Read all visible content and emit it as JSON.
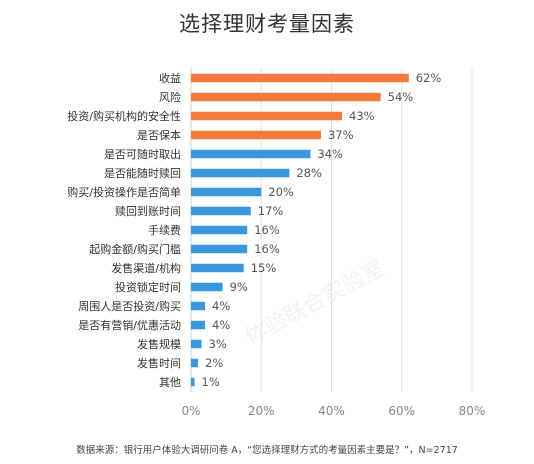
{
  "chart_data": {
    "type": "bar",
    "orientation": "horizontal",
    "title": "选择理财考量因素",
    "categories": [
      "收益",
      "风险",
      "投资/购买机构的安全性",
      "是否保本",
      "是否可随时取出",
      "是否能随时赎回",
      "购买/投资操作是否简单",
      "赎回到账时间",
      "手续费",
      "起购金额/购买门槛",
      "发售渠道/机构",
      "投资锁定时间",
      "周围人是否投资/购买",
      "是否有营销/优惠活动",
      "发售规模",
      "发售时间",
      "其他"
    ],
    "values": [
      62,
      54,
      43,
      37,
      34,
      28,
      20,
      17,
      16,
      16,
      15,
      9,
      4,
      4,
      3,
      2,
      1
    ],
    "data_labels": [
      "62%",
      "54%",
      "43%",
      "37%",
      "34%",
      "28%",
      "20%",
      "17%",
      "16%",
      "16%",
      "15%",
      "9%",
      "4%",
      "4%",
      "3%",
      "2%",
      "1%"
    ],
    "colors": [
      "#F47A3C",
      "#F47A3C",
      "#F47A3C",
      "#F47A3C",
      "#3A97D9",
      "#3A97D9",
      "#3A97D9",
      "#3A97D9",
      "#3A97D9",
      "#3A97D9",
      "#3A97D9",
      "#3A97D9",
      "#3A97D9",
      "#3A97D9",
      "#3A97D9",
      "#3A97D9",
      "#3A97D9"
    ],
    "xlim": [
      0,
      80
    ],
    "xticks": [
      0,
      20,
      40,
      60,
      80
    ],
    "xtick_labels": [
      "0%",
      "20%",
      "40%",
      "60%",
      "80%"
    ],
    "grid": true
  },
  "source_note": "数据来源：银行用户体验大调研问卷 A，“您选择理财方式的考量因素主要是？”，N=2717",
  "watermark": "体验联合实验室"
}
